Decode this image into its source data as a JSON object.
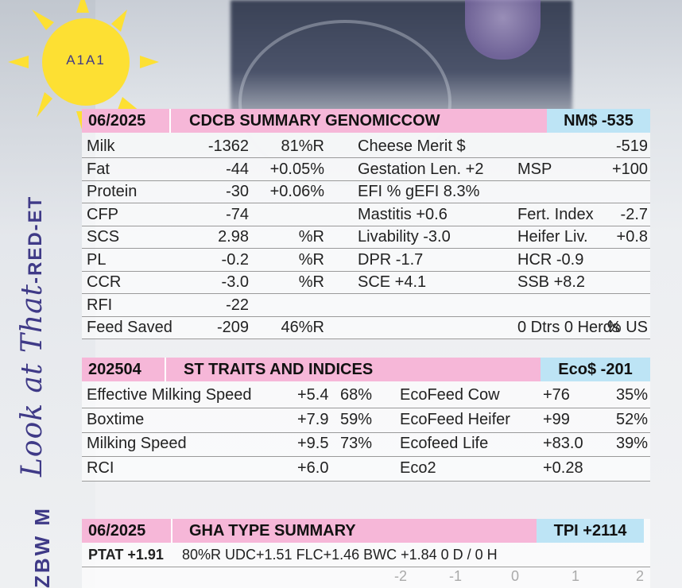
{
  "sun": {
    "label": "A1A1"
  },
  "side": {
    "script": "Look at That",
    "suffix": "-RED-ET",
    "code": "ZBW M"
  },
  "cdcb": {
    "date": "06/2025",
    "title": "CDCB SUMMARY GENOMICCOW",
    "index": "NM$ -535",
    "rows": [
      {
        "a": "Milk",
        "b": "-1362",
        "c": "81%R",
        "d": "Cheese Merit $",
        "e": "",
        "f": "-519"
      },
      {
        "a": "Fat",
        "b": "-44",
        "c": "+0.05%",
        "d": "Gestation Len. +2",
        "e": "MSP",
        "f": "+100"
      },
      {
        "a": "Protein",
        "b": "-30",
        "c": "+0.06%",
        "d": "EFI  %     gEFI  8.3%",
        "e": "",
        "f": ""
      },
      {
        "a": "CFP",
        "b": "-74",
        "c": "",
        "d": "Mastitis   +0.6",
        "e": "Fert. Index",
        "f": "-2.7"
      },
      {
        "a": "SCS",
        "b": "2.98",
        "c": "%R",
        "d": "Livability   -3.0",
        "e": "Heifer Liv.",
        "f": "+0.8"
      },
      {
        "a": "PL",
        "b": "-0.2",
        "c": "%R",
        "d": "DPR   -1.7",
        "e": "HCR  -0.9",
        "f": ""
      },
      {
        "a": "CCR",
        "b": "-3.0",
        "c": "%R",
        "d": "SCE   +4.1",
        "e": "SSB  +8.2",
        "f": ""
      },
      {
        "a": "RFI",
        "b": "-22",
        "c": "",
        "d": "",
        "e": "",
        "f": ""
      },
      {
        "a": "Feed Saved",
        "b": "-209",
        "c": "46%R",
        "d": "",
        "e": "0 Dtrs  0 Herds",
        "f": "% US"
      }
    ]
  },
  "st": {
    "date": "202504",
    "title": "ST TRAITS AND INDICES",
    "index": "Eco$ -201",
    "rows": [
      {
        "a": "Effective Milking Speed",
        "b": "+5.4",
        "c": "68%",
        "d": "EcoFeed Cow",
        "e": "+76",
        "f": "35%"
      },
      {
        "a": "Boxtime",
        "b": "+7.9",
        "c": "59%",
        "d": "EcoFeed Heifer",
        "e": "+99",
        "f": "52%"
      },
      {
        "a": "Milking Speed",
        "b": "+9.5",
        "c": "73%",
        "d": "Ecofeed Life",
        "e": "+83.0",
        "f": "39%"
      },
      {
        "a": "RCI",
        "b": "+6.0",
        "c": "",
        "d": "Eco2",
        "e": "+0.28",
        "f": ""
      }
    ]
  },
  "gha": {
    "date": "06/2025",
    "title": "GHA TYPE SUMMARY",
    "index": "TPI +2114",
    "ptat": "PTAT +1.91",
    "line": "80%R  UDC+1.51  FLC+1.46  BWC +1.84  0 D /  0 H",
    "scale": [
      "-2",
      "-1",
      "0",
      "1",
      "2"
    ]
  },
  "colors": {
    "pink": "#f6b7d8",
    "blue": "#bde4f5",
    "sun": "#fde033",
    "brand": "#3f3a87"
  }
}
